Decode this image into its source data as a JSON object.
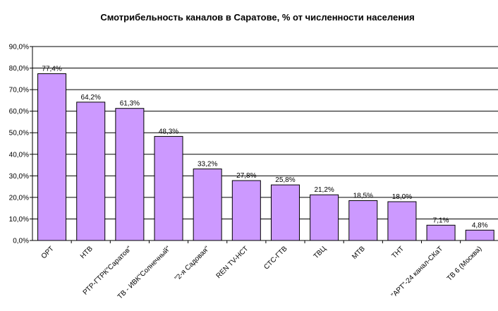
{
  "chart_data": {
    "type": "bar",
    "title": "Смотрибельность каналов в Саратове, % от численности населения",
    "categories": [
      "ОРТ",
      "НТВ",
      "РТР-ГТРК\"Саратов\"",
      "ТВ - ИВК\"Солнечный\"",
      "\"2-я Садовая\"",
      "REN TV-НСТ",
      "СТС-ГТВ",
      "ТВЦ",
      "МТВ",
      "ТНТ",
      "\"АРТ\"-24 канал-СКаТ",
      "ТВ 6 (Москва)"
    ],
    "values": [
      77.4,
      64.2,
      61.3,
      48.3,
      33.2,
      27.8,
      25.8,
      21.2,
      18.5,
      18.0,
      7.1,
      4.8
    ],
    "data_labels": [
      "77,4%",
      "64,2%",
      "61,3%",
      "48,3%",
      "33,2%",
      "27,8%",
      "25,8%",
      "21,2%",
      "18,5%",
      "18,0%",
      "7,1%",
      "4,8%"
    ],
    "y_ticks": [
      "0,0%",
      "10,0%",
      "20,0%",
      "30,0%",
      "40,0%",
      "50,0%",
      "60,0%",
      "70,0%",
      "80,0%",
      "90,0%"
    ],
    "ylim": [
      0,
      90
    ],
    "xlabel": "",
    "ylabel": "",
    "grid": true,
    "legend": "none",
    "colors": {
      "bar_fill": "#cc99ff",
      "bar_stroke": "#000000",
      "grid": "#000000",
      "axis": "#000000"
    }
  }
}
